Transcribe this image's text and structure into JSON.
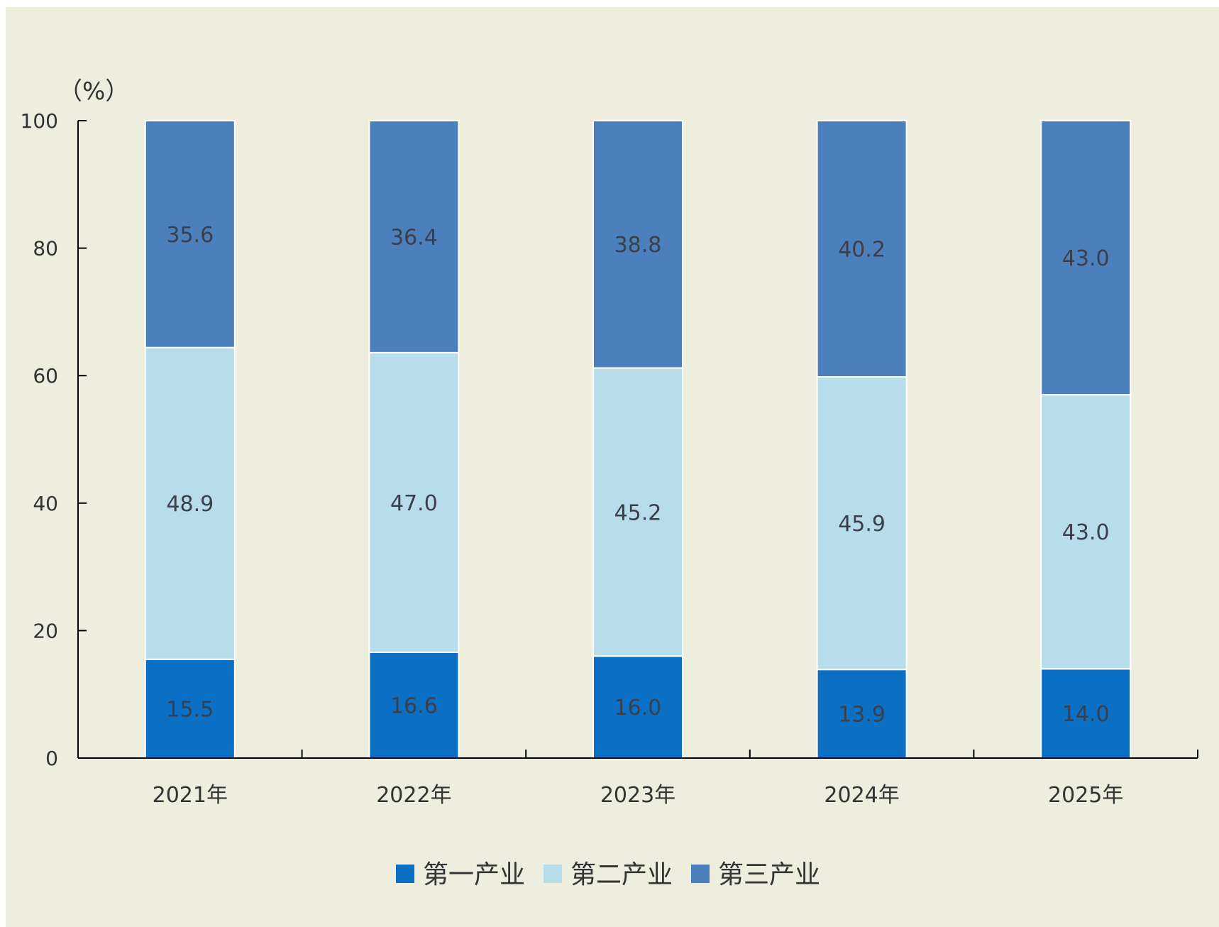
{
  "chart_data": {
    "type": "bar",
    "stacked": true,
    "y_unit": "（%）",
    "categories": [
      "2021年",
      "2022年",
      "2023年",
      "2024年",
      "2025年"
    ],
    "series": [
      {
        "name": "第一产业",
        "color": "#0b6fc4",
        "values": [
          15.5,
          16.6,
          16.0,
          13.9,
          14.0
        ]
      },
      {
        "name": "第二产业",
        "color": "#b7dcea",
        "values": [
          48.9,
          47.0,
          45.2,
          45.9,
          43.0
        ]
      },
      {
        "name": "第三产业",
        "color": "#4b80bd",
        "values": [
          35.6,
          36.4,
          38.8,
          40.2,
          43.0
        ]
      }
    ],
    "ylim": [
      0,
      100
    ],
    "yticks": [
      0,
      20,
      40,
      60,
      80,
      100
    ],
    "grid": false,
    "legend": "bottom"
  }
}
